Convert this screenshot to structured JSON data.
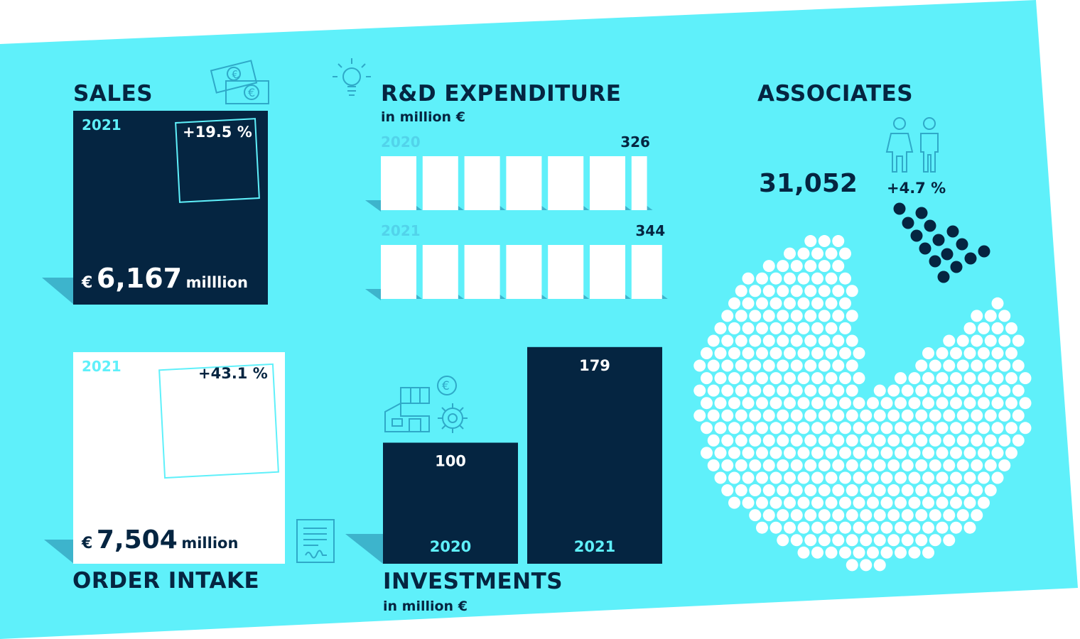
{
  "colors": {
    "cyan": "#5ff0fa",
    "navy": "#052541",
    "white": "#ffffff",
    "shadow": "#3db4cc"
  },
  "sales": {
    "title": "SALES",
    "year": "2021",
    "change": "+19.5 %",
    "currency": "€",
    "value": "6,167",
    "unit": "milllion",
    "icon": "banknotes-icon"
  },
  "order_intake": {
    "title": "ORDER INTAKE",
    "year": "2021",
    "change": "+43.1 %",
    "currency": "€",
    "value": "7,504",
    "unit": "million",
    "icon": "contract-icon"
  },
  "rd": {
    "title": "R&D EXPENDITURE",
    "subtitle": "in million €",
    "icon": "lightbulb-icon"
  },
  "investments": {
    "title": "INVESTMENTS",
    "subtitle": "in million €",
    "icons": [
      "factory-icon",
      "euro-coin-icon",
      "gear-icon"
    ]
  },
  "associates": {
    "title": "ASSOCIATES",
    "value": "31,052",
    "change": "+4.7 %",
    "icon": "people-icon"
  },
  "chart_data": [
    {
      "type": "bar",
      "title": "R&D EXPENDITURE",
      "subtitle": "in million €",
      "orientation": "horizontal",
      "categories": [
        "2020",
        "2021"
      ],
      "values": [
        326,
        344
      ],
      "value_labels": [
        "326",
        "344"
      ]
    },
    {
      "type": "bar",
      "title": "INVESTMENTS",
      "subtitle": "in million €",
      "categories": [
        "2020",
        "2021"
      ],
      "values": [
        100,
        179
      ],
      "value_labels": [
        "100",
        "179"
      ]
    }
  ]
}
